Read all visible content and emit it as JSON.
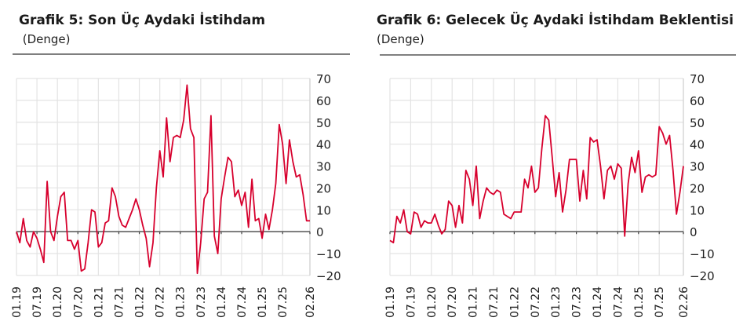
{
  "charts": [
    {
      "title": "Grafik 5: Son Üç Aydaki İstihdam",
      "subtitle": " (Denge)"
    },
    {
      "title": "Grafik 6: Gelecek Üç Aydaki İstihdam Beklentisi",
      "subtitle": "(Denge)"
    }
  ],
  "line_color": "#d7002d",
  "chart_data": [
    {
      "type": "line",
      "title": "Grafik 5: Son Üç Aydaki İstihdam",
      "subtitle": "(Denge)",
      "xlabel": "",
      "ylabel": "",
      "ylim": [
        -20,
        70
      ],
      "yticks": [
        70,
        60,
        50,
        40,
        30,
        20,
        10,
        0,
        -10,
        -20
      ],
      "y_axis_position": "right",
      "grid": true,
      "legend": "none",
      "xtick_labels": [
        "01.19",
        "07.19",
        "01.20",
        "07.20",
        "01.21",
        "07.21",
        "01.22",
        "07.22",
        "01.23",
        "07.23",
        "01.24",
        "07.24",
        "01.25",
        "07.25",
        "02.26"
      ],
      "x_start": "01.19",
      "x_end": "02.26",
      "frequency": "monthly",
      "values": [
        0,
        -5,
        6,
        -4,
        -7,
        0,
        -3,
        -8,
        -14,
        23,
        0,
        -4,
        7,
        16,
        18,
        -4,
        -4,
        -8,
        -4,
        -18,
        -17,
        -5,
        10,
        9,
        -7,
        -5,
        4,
        5,
        20,
        16,
        7,
        3,
        2,
        6,
        10,
        15,
        10,
        3,
        -3,
        -16,
        -5,
        20,
        37,
        25,
        52,
        32,
        43,
        44,
        43,
        51,
        67,
        47,
        43,
        -19,
        -5,
        15,
        18,
        53,
        -2,
        -10,
        15,
        25,
        34,
        32,
        16,
        19,
        12,
        18,
        2,
        24,
        5,
        6,
        -3,
        8,
        1,
        10,
        22,
        49,
        40,
        22,
        42,
        32,
        25,
        26,
        17,
        5,
        5
      ]
    },
    {
      "type": "line",
      "title": "Grafik 6: Gelecek Üç Aydaki İstihdam Beklentisi",
      "subtitle": "(Denge)",
      "xlabel": "",
      "ylabel": "",
      "ylim": [
        -20,
        70
      ],
      "yticks": [
        70,
        60,
        50,
        40,
        30,
        20,
        10,
        0,
        -10,
        -20
      ],
      "y_axis_position": "right",
      "grid": true,
      "legend": "none",
      "xtick_labels": [
        "01.19",
        "07.19",
        "01.20",
        "07.20",
        "01.21",
        "07.21",
        "01.22",
        "07.22",
        "01.23",
        "07.23",
        "01.24",
        "07.24",
        "01.25",
        "07.25",
        "02.26"
      ],
      "x_start": "01.19",
      "x_end": "02.26",
      "frequency": "monthly",
      "values": [
        -4,
        -5,
        7,
        4,
        10,
        0,
        -1,
        9,
        8,
        2,
        5,
        4,
        4,
        8,
        3,
        -1,
        1,
        14,
        12,
        2,
        12,
        4,
        28,
        24,
        12,
        30,
        6,
        14,
        20,
        18,
        17,
        19,
        18,
        8,
        7,
        6,
        9,
        9,
        9,
        24,
        20,
        30,
        18,
        20,
        38,
        53,
        51,
        34,
        16,
        27,
        9,
        19,
        33,
        33,
        33,
        14,
        28,
        15,
        43,
        41,
        42,
        30,
        15,
        28,
        30,
        24,
        31,
        29,
        -2,
        22,
        34,
        27,
        37,
        18,
        25,
        26,
        25,
        26,
        48,
        45,
        40,
        44,
        28,
        8,
        18,
        30
      ]
    }
  ]
}
